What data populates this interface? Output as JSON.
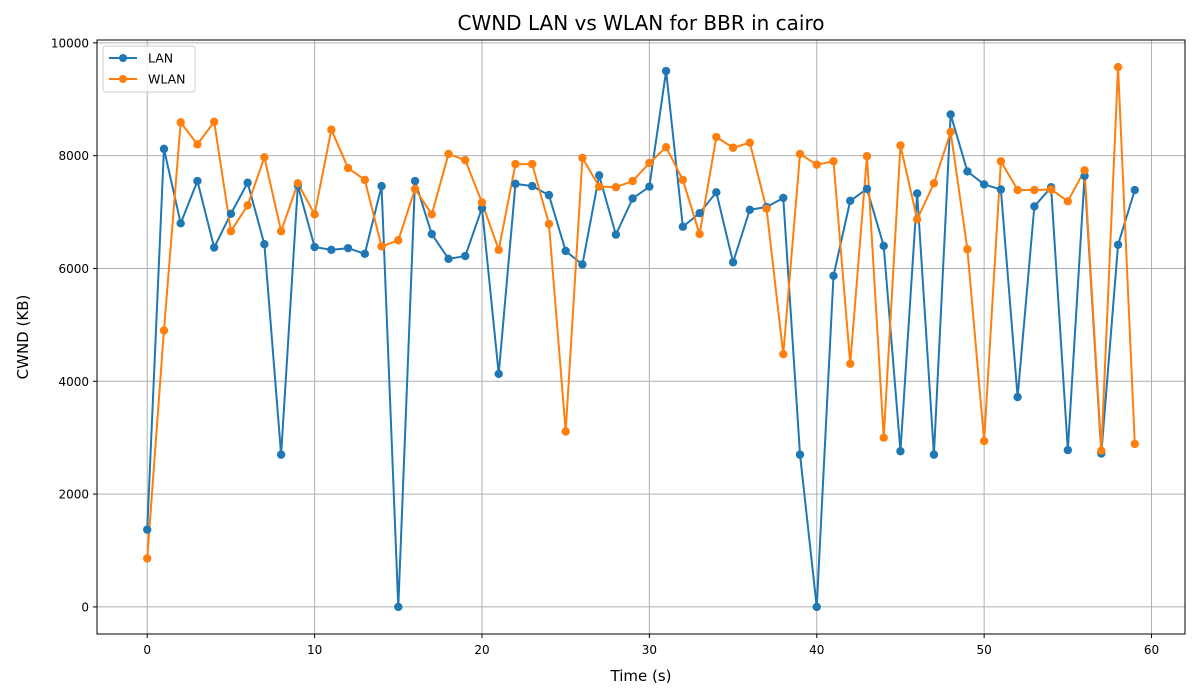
{
  "chart_data": {
    "type": "line",
    "title": "CWND LAN vs WLAN for BBR in cairo",
    "xlabel": "Time (s)",
    "ylabel": "CWND (KB)",
    "xlim": [
      -3,
      62
    ],
    "ylim": [
      -480,
      10050
    ],
    "xticks": [
      0,
      10,
      20,
      30,
      40,
      50,
      60
    ],
    "yticks": [
      0,
      2000,
      4000,
      6000,
      8000,
      10000
    ],
    "grid": true,
    "legend_position": "upper-left",
    "x": [
      0,
      1,
      2,
      3,
      4,
      5,
      6,
      7,
      8,
      9,
      10,
      11,
      12,
      13,
      14,
      15,
      16,
      17,
      18,
      19,
      20,
      21,
      22,
      23,
      24,
      25,
      26,
      27,
      28,
      29,
      30,
      31,
      32,
      33,
      34,
      35,
      36,
      37,
      38,
      39,
      40,
      41,
      42,
      43,
      44,
      45,
      46,
      47,
      48,
      49,
      50,
      51,
      52,
      53,
      54,
      55,
      56,
      57,
      58,
      59
    ],
    "series": [
      {
        "name": "LAN",
        "color": "#1f77b4",
        "values": [
          1370,
          8120,
          6800,
          7550,
          6370,
          6970,
          7520,
          6430,
          2700,
          7470,
          6380,
          6330,
          6360,
          6260,
          7460,
          0,
          7550,
          6610,
          6170,
          6220,
          7070,
          4130,
          7500,
          7460,
          7300,
          6310,
          6070,
          7650,
          6600,
          7240,
          7450,
          9500,
          6740,
          6980,
          7350,
          6110,
          7040,
          7090,
          7250,
          2700,
          0,
          5870,
          7200,
          7410,
          6400,
          2760,
          7330,
          2700,
          8730,
          7720,
          7490,
          7400,
          3720,
          7100,
          7440,
          2780,
          7640,
          2720,
          6420,
          7390
        ]
      },
      {
        "name": "WLAN",
        "color": "#ff7f0e",
        "values": [
          860,
          4900,
          8590,
          8200,
          8600,
          6660,
          7120,
          7970,
          6660,
          7510,
          6960,
          8460,
          7780,
          7570,
          6390,
          6500,
          7410,
          6960,
          8030,
          7920,
          7170,
          6330,
          7850,
          7850,
          6790,
          3110,
          7960,
          7450,
          7440,
          7550,
          7870,
          8150,
          7570,
          6610,
          8330,
          8140,
          8230,
          7060,
          4480,
          8030,
          7840,
          7900,
          4310,
          7990,
          3000,
          8180,
          6870,
          7510,
          8420,
          6340,
          2940,
          7900,
          7390,
          7390,
          7400,
          7190,
          7740,
          2770,
          9570,
          2890
        ]
      }
    ]
  }
}
